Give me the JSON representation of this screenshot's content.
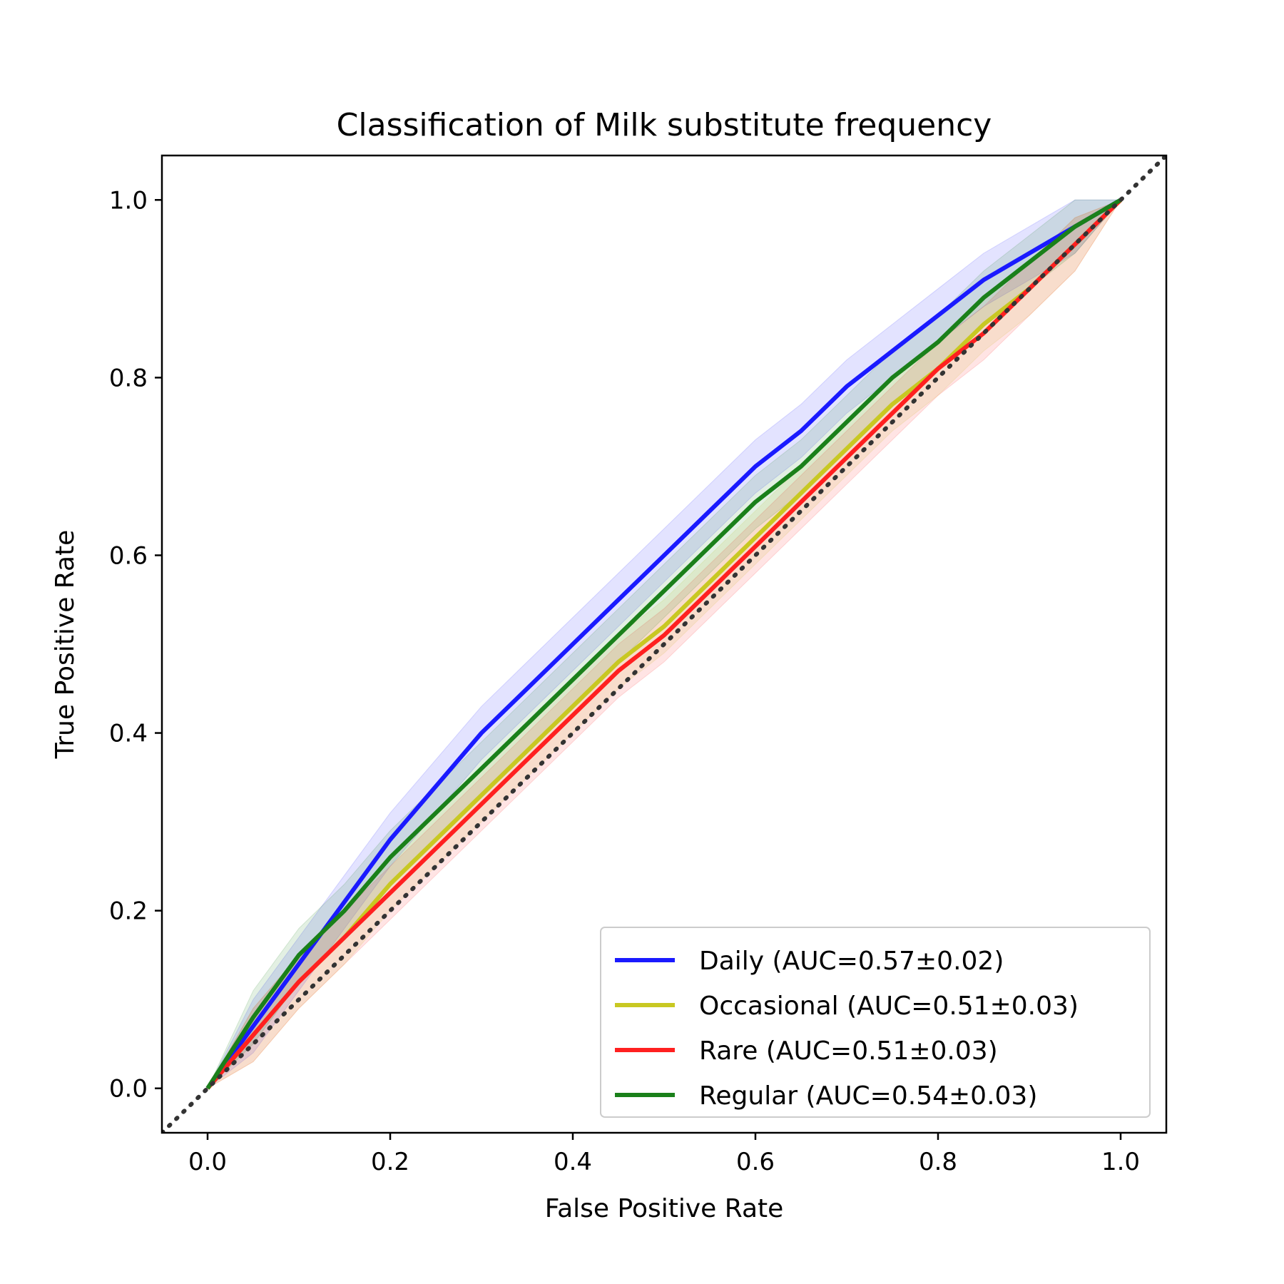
{
  "chart_data": {
    "type": "line",
    "title": "Classification of Milk substitute frequency",
    "xlabel": "False Positive Rate",
    "ylabel": "True Positive Rate",
    "xlim": [
      -0.05,
      1.05
    ],
    "ylim": [
      -0.05,
      1.05
    ],
    "x_ticks": [
      "0.0",
      "0.2",
      "0.4",
      "0.6",
      "0.8",
      "1.0"
    ],
    "y_ticks": [
      "0.0",
      "0.2",
      "0.4",
      "0.6",
      "0.8",
      "1.0"
    ],
    "grid": false,
    "legend_position": "lower-right",
    "reference_line": {
      "style": "dotted",
      "color": "#333333",
      "x": [
        -0.05,
        1.05
      ],
      "y": [
        -0.05,
        1.05
      ]
    },
    "series": [
      {
        "name": "Daily (AUC=0.57±0.02)",
        "color": "#1a1aff",
        "x": [
          0.0,
          0.05,
          0.1,
          0.15,
          0.2,
          0.25,
          0.3,
          0.35,
          0.4,
          0.45,
          0.5,
          0.55,
          0.6,
          0.65,
          0.7,
          0.75,
          0.8,
          0.85,
          0.9,
          0.95,
          1.0
        ],
        "y": [
          0.0,
          0.07,
          0.14,
          0.21,
          0.28,
          0.34,
          0.4,
          0.45,
          0.5,
          0.55,
          0.6,
          0.65,
          0.7,
          0.74,
          0.79,
          0.83,
          0.87,
          0.91,
          0.94,
          0.97,
          1.0
        ],
        "band": 0.03
      },
      {
        "name": "Occasional (AUC=0.51±0.03)",
        "color": "#c8c822",
        "x": [
          0.0,
          0.05,
          0.1,
          0.15,
          0.2,
          0.25,
          0.3,
          0.35,
          0.4,
          0.45,
          0.5,
          0.55,
          0.6,
          0.65,
          0.7,
          0.75,
          0.8,
          0.85,
          0.9,
          0.95,
          1.0
        ],
        "y": [
          0.0,
          0.06,
          0.12,
          0.17,
          0.23,
          0.28,
          0.33,
          0.38,
          0.43,
          0.48,
          0.52,
          0.57,
          0.62,
          0.67,
          0.72,
          0.77,
          0.81,
          0.86,
          0.9,
          0.95,
          1.0
        ],
        "band": 0.03
      },
      {
        "name": "Rare (AUC=0.51±0.03)",
        "color": "#ff2020",
        "x": [
          0.0,
          0.05,
          0.1,
          0.15,
          0.2,
          0.25,
          0.3,
          0.35,
          0.4,
          0.45,
          0.5,
          0.55,
          0.6,
          0.65,
          0.7,
          0.75,
          0.8,
          0.85,
          0.9,
          0.95,
          1.0
        ],
        "y": [
          0.0,
          0.06,
          0.12,
          0.17,
          0.22,
          0.27,
          0.32,
          0.37,
          0.42,
          0.47,
          0.51,
          0.56,
          0.61,
          0.66,
          0.71,
          0.76,
          0.81,
          0.85,
          0.9,
          0.95,
          1.0
        ],
        "band": 0.03
      },
      {
        "name": "Regular (AUC=0.54±0.03)",
        "color": "#1a801a",
        "x": [
          0.0,
          0.05,
          0.1,
          0.15,
          0.2,
          0.25,
          0.3,
          0.35,
          0.4,
          0.45,
          0.5,
          0.55,
          0.6,
          0.65,
          0.7,
          0.75,
          0.8,
          0.85,
          0.9,
          0.95,
          1.0
        ],
        "y": [
          0.0,
          0.08,
          0.15,
          0.2,
          0.26,
          0.31,
          0.36,
          0.41,
          0.46,
          0.51,
          0.56,
          0.61,
          0.66,
          0.7,
          0.75,
          0.8,
          0.84,
          0.89,
          0.93,
          0.97,
          1.0
        ],
        "band": 0.03
      }
    ]
  }
}
